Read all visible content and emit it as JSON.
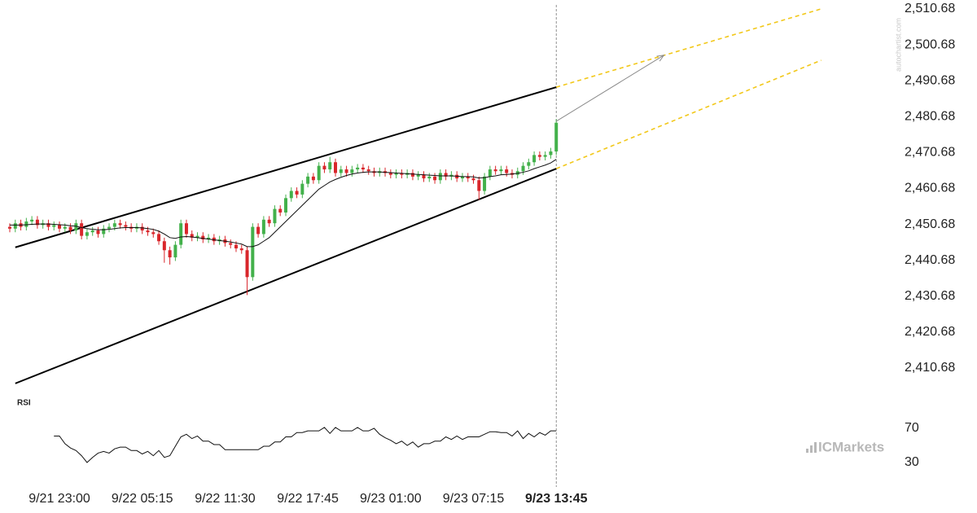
{
  "chart_data": {
    "type": "candlestick",
    "categories": [
      null,
      null,
      null,
      null,
      null,
      null,
      null,
      null,
      null,
      "9/21 23:00",
      null,
      null,
      null,
      null,
      null,
      null,
      null,
      null,
      null,
      null,
      null,
      null,
      null,
      null,
      "9/22 05:15",
      null,
      null,
      null,
      null,
      null,
      null,
      null,
      null,
      null,
      null,
      null,
      null,
      null,
      null,
      "9/22 11:30",
      null,
      null,
      null,
      null,
      null,
      null,
      null,
      null,
      null,
      null,
      null,
      null,
      null,
      null,
      "9/22 17:45",
      null,
      null,
      null,
      null,
      null,
      null,
      null,
      null,
      null,
      null,
      null,
      null,
      null,
      null,
      "9/23 01:00",
      null,
      null,
      null,
      null,
      null,
      null,
      null,
      null,
      null,
      null,
      null,
      null,
      null,
      null,
      "9/23 07:15",
      null,
      null,
      null,
      null,
      null,
      null,
      null,
      null,
      null,
      null,
      null,
      null,
      null,
      null,
      "9/23 13:45"
    ],
    "open": [
      2450,
      2449.5,
      2451,
      2450,
      2451.5,
      2452,
      2450.5,
      2451,
      2450,
      2450.5,
      2449.5,
      2450,
      2449,
      2451,
      2447.5,
      2448.5,
      2449,
      2448,
      2449.5,
      2450,
      2451,
      2450.5,
      2450,
      2449.5,
      2450,
      2449,
      2448.5,
      2448,
      2446,
      2443.5,
      2441.5,
      2445,
      2451,
      2448,
      2447,
      2447.5,
      2446.5,
      2447,
      2446,
      2446.5,
      2445.5,
      2445,
      2444,
      2443.5,
      2436,
      2450,
      2448,
      2452,
      2451,
      2455,
      2454,
      2458,
      2460,
      2459,
      2462,
      2464,
      2463,
      2467,
      2466,
      2468,
      2465,
      2466,
      2465,
      2466,
      2466.5,
      2466,
      2465.5,
      2465,
      2465.5,
      2465,
      2464.5,
      2465,
      2464.5,
      2465,
      2464,
      2464.5,
      2463.5,
      2464,
      2463,
      2465,
      2464,
      2464.5,
      2463.5,
      2464,
      2463.5,
      2463,
      2460,
      2464,
      2466,
      2465.5,
      2466,
      2465,
      2464.5,
      2465.5,
      2467,
      2468,
      2470,
      2469.5,
      2470,
      2471
    ],
    "high": [
      2451,
      2452,
      2452,
      2452.5,
      2453,
      2453,
      2452,
      2452,
      2451.5,
      2451.5,
      2451,
      2451,
      2452,
      2452,
      2449.5,
      2450,
      2450,
      2450.5,
      2451,
      2452,
      2452,
      2451.5,
      2451,
      2451,
      2451,
      2450,
      2449.5,
      2449,
      2447,
      2444.5,
      2446,
      2452,
      2452,
      2449,
      2448.5,
      2448.5,
      2448,
      2448,
      2447.5,
      2447.5,
      2446.5,
      2446,
      2445,
      2444.5,
      2451,
      2451,
      2453,
      2453,
      2456,
      2456,
      2459,
      2461,
      2461,
      2463,
      2465,
      2465,
      2468,
      2468,
      2469.5,
      2469,
      2467,
      2467,
      2467,
      2467.5,
      2467.5,
      2467,
      2466.5,
      2466.5,
      2466.5,
      2466,
      2466,
      2466,
      2466,
      2466,
      2465.5,
      2465.5,
      2465,
      2465,
      2466,
      2466,
      2465.5,
      2465.5,
      2465,
      2465,
      2464.5,
      2464,
      2465,
      2467,
      2467,
      2467,
      2467,
      2466,
      2466.5,
      2468,
      2469,
      2471,
      2471,
      2471,
      2472,
      2480
    ],
    "low": [
      2448.5,
      2448.5,
      2449,
      2449,
      2450.5,
      2449.5,
      2449.5,
      2449,
      2449,
      2448.5,
      2448.5,
      2448,
      2448,
      2446.5,
      2446.5,
      2447.5,
      2447,
      2447,
      2448.5,
      2449,
      2449.5,
      2449,
      2448.5,
      2448.5,
      2448,
      2447.5,
      2447,
      2445,
      2440,
      2439.5,
      2440.5,
      2444,
      2447,
      2446,
      2446,
      2445.5,
      2445.5,
      2445,
      2445,
      2444.5,
      2444,
      2443,
      2442.5,
      2431,
      2435,
      2447,
      2447,
      2450,
      2450,
      2453,
      2453,
      2457,
      2458,
      2458,
      2461,
      2462,
      2462,
      2465,
      2465,
      2464,
      2464,
      2464,
      2464,
      2465,
      2465,
      2464.5,
      2464,
      2464,
      2464,
      2463.5,
      2463.5,
      2463.5,
      2463.5,
      2463,
      2463,
      2462.5,
      2462.5,
      2462,
      2462,
      2463,
      2463,
      2462.5,
      2462.5,
      2462.5,
      2462,
      2457.5,
      2459,
      2463,
      2464.5,
      2464.5,
      2464,
      2463.5,
      2463.5,
      2464.5,
      2466,
      2467,
      2468.5,
      2468.5,
      2469,
      2470
    ],
    "close": [
      2449.5,
      2451,
      2450,
      2451.5,
      2452,
      2450.5,
      2451,
      2450,
      2450.5,
      2449.5,
      2450,
      2449,
      2451,
      2447.5,
      2448.5,
      2449,
      2448,
      2449.5,
      2450,
      2451,
      2450.5,
      2450,
      2449.5,
      2450,
      2449,
      2448.5,
      2448,
      2446,
      2443.5,
      2441.5,
      2445,
      2451,
      2448,
      2447,
      2447.5,
      2446.5,
      2447,
      2446,
      2446.5,
      2445.5,
      2445,
      2444,
      2443.5,
      2436,
      2450,
      2448,
      2452,
      2451,
      2455,
      2454,
      2458,
      2460,
      2459,
      2462,
      2464,
      2463,
      2467,
      2466,
      2468,
      2465,
      2466,
      2465,
      2466,
      2466.5,
      2466,
      2465.5,
      2465,
      2465.5,
      2465,
      2464.5,
      2465,
      2464.5,
      2465,
      2464,
      2464.5,
      2463.5,
      2464,
      2463,
      2465,
      2464,
      2464.5,
      2463.5,
      2464,
      2463.5,
      2463,
      2460,
      2464,
      2466,
      2465.5,
      2466,
      2465,
      2464.5,
      2465.5,
      2467,
      2468,
      2470,
      2469.5,
      2470,
      2471,
      2479
    ],
    "up_color": "#43b14b",
    "down_color": "#d9262b",
    "ma": {
      "color": "#111111",
      "values": [
        2450.5,
        2450.5,
        2450.5,
        2450.6,
        2450.7,
        2450.8,
        2450.8,
        2450.8,
        2450.7,
        2450.6,
        2450.5,
        2450.3,
        2450.2,
        2449.8,
        2449.5,
        2449.3,
        2449.2,
        2449.2,
        2449.3,
        2449.5,
        2449.7,
        2449.8,
        2449.8,
        2449.8,
        2449.7,
        2449.5,
        2449.3,
        2448.8,
        2448,
        2447,
        2446.8,
        2447.2,
        2447.3,
        2447.2,
        2447,
        2446.8,
        2446.6,
        2446.4,
        2446.2,
        2446,
        2445.8,
        2445.5,
        2445.2,
        2444.5,
        2444.5,
        2445,
        2446,
        2447,
        2448.5,
        2450,
        2451.5,
        2453,
        2454.5,
        2456,
        2457.5,
        2459,
        2460.5,
        2461.5,
        2462.5,
        2463.2,
        2463.8,
        2464.3,
        2464.7,
        2465,
        2465.2,
        2465.3,
        2465.3,
        2465.3,
        2465.2,
        2465.1,
        2465,
        2464.9,
        2464.8,
        2464.7,
        2464.6,
        2464.5,
        2464.4,
        2464.3,
        2464.2,
        2464.2,
        2464.2,
        2464.1,
        2464,
        2464,
        2463.9,
        2463.6,
        2463.7,
        2464,
        2464.2,
        2464.5,
        2464.6,
        2464.7,
        2464.9,
        2465.2,
        2465.6,
        2466.2,
        2466.7,
        2467.2,
        2467.8,
        2468.8
      ]
    },
    "lines": [
      {
        "x": [
          1,
          99
        ],
        "values": [
          2444.3,
          2488.9
        ],
        "color": "#000000",
        "dashed": false
      },
      {
        "x": [
          1,
          99
        ],
        "values": [
          2406.4,
          2466.2
        ],
        "color": "#000000",
        "dashed": false
      },
      {
        "x": [
          99,
          147
        ],
        "values": [
          2488.9,
          2510.7
        ],
        "color": "#f2c81a",
        "dashed": true
      },
      {
        "x": [
          99,
          147
        ],
        "values": [
          2466.2,
          2496.4
        ],
        "color": "#f2c81a",
        "dashed": true
      }
    ],
    "arrow": {
      "x": [
        99,
        118.5
      ],
      "values": [
        2479.4,
        2497.8
      ],
      "color": "#8a8a8a"
    },
    "ylim": [
      2406.68,
      2512.68
    ],
    "yticks": [
      {
        "value": 2510.68,
        "label": "2,510.68"
      },
      {
        "value": 2500.68,
        "label": "2,500.68"
      },
      {
        "value": 2490.68,
        "label": "2,490.68"
      },
      {
        "value": 2480.68,
        "label": "2,480.68"
      },
      {
        "value": 2470.68,
        "label": "2,470.68"
      },
      {
        "value": 2460.68,
        "label": "2,460.68"
      },
      {
        "value": 2450.68,
        "label": "2,450.68"
      },
      {
        "value": 2440.68,
        "label": "2,440.68"
      },
      {
        "value": 2430.68,
        "label": "2,430.68"
      },
      {
        "value": 2420.68,
        "label": "2,420.68"
      },
      {
        "value": 2410.68,
        "label": "2,410.68"
      }
    ],
    "rsi": {
      "label": "RSI",
      "ylim": [
        20,
        80
      ],
      "yticks": [
        70,
        30
      ],
      "color": "#111111",
      "values": [
        null,
        null,
        null,
        null,
        null,
        null,
        null,
        null,
        61,
        61,
        52,
        47,
        44,
        38,
        30,
        36,
        41,
        43,
        41,
        46,
        48,
        48,
        44,
        44,
        40,
        43,
        38,
        44,
        36,
        38,
        49,
        60,
        63,
        58,
        61,
        55,
        55,
        51,
        51,
        45,
        45,
        45,
        45,
        45,
        45,
        45,
        49,
        49,
        54,
        54,
        60,
        60,
        65,
        65,
        67,
        67,
        67,
        71,
        64,
        71,
        67,
        67,
        67,
        71,
        67,
        67,
        70,
        63,
        59,
        56,
        52,
        55,
        50,
        54,
        48,
        52,
        52,
        55,
        55,
        60,
        57,
        61,
        57,
        60,
        60,
        60,
        63,
        66,
        66,
        65,
        65,
        61,
        67,
        58,
        64,
        60,
        65,
        62,
        67,
        67
      ]
    },
    "watermark": "autochartist.com",
    "brand": "ICMarkets"
  }
}
